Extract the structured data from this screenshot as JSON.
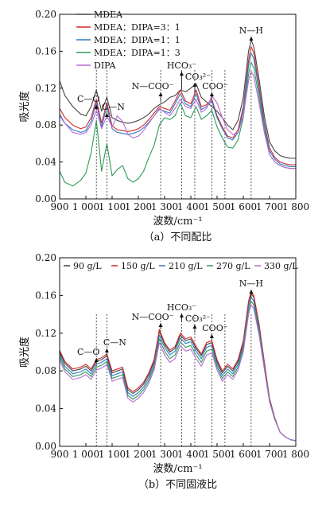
{
  "charts": [
    {
      "id": "a",
      "caption": "（a）不同配比",
      "xlabel": "波数/cm⁻¹",
      "ylabel": "吸光度",
      "xlim": [
        900,
        1800
      ],
      "ylim": [
        0,
        0.2
      ],
      "xticks": [
        900,
        1000,
        1100,
        1200,
        1300,
        1400,
        1500,
        1600,
        1700,
        1800
      ],
      "xtick_labels": [
        "900",
        "1 000",
        "1 100",
        "1 200",
        "1 300",
        "1 400",
        "1 500",
        "1 600",
        "1 700",
        "1 800"
      ],
      "yticks": [
        0,
        0.04,
        0.08,
        0.12,
        0.16,
        0.2
      ],
      "ytick_labels": [
        "0.00",
        "0.04",
        "0.08",
        "0.12",
        "0.16",
        "0.20"
      ],
      "legend": {
        "placement": "top-left"
      },
      "annotations": [
        {
          "label": "C—O",
          "x": 1040
        },
        {
          "label": "C—N",
          "x": 1080
        },
        {
          "label": "N—COO⁻",
          "x": 1285
        },
        {
          "label": "HCO₃⁻",
          "x": 1365
        },
        {
          "label": "CO₃²⁻",
          "x": 1415
        },
        {
          "label": "COO⁻",
          "x": 1480
        },
        {
          "label": "N—H",
          "x": 1630
        }
      ],
      "dashed_markers": [
        1040,
        1080,
        1285,
        1365,
        1415,
        1480,
        1530,
        1630
      ],
      "chart_data": {
        "type": "line",
        "x": [
          900,
          920,
          950,
          980,
          1000,
          1020,
          1040,
          1060,
          1080,
          1100,
          1120,
          1140,
          1160,
          1180,
          1200,
          1220,
          1240,
          1260,
          1280,
          1300,
          1320,
          1340,
          1360,
          1380,
          1400,
          1420,
          1440,
          1460,
          1480,
          1500,
          1520,
          1540,
          1560,
          1580,
          1600,
          1620,
          1630,
          1640,
          1660,
          1680,
          1700,
          1720,
          1740,
          1760,
          1780,
          1800
        ],
        "series": [
          {
            "name": "MDEA",
            "color": "#444444",
            "values": [
              0.128,
              0.112,
              0.1,
              0.092,
              0.09,
              0.1,
              0.118,
              0.095,
              0.11,
              0.088,
              0.085,
              0.083,
              0.082,
              0.083,
              0.085,
              0.088,
              0.092,
              0.098,
              0.102,
              0.105,
              0.11,
              0.112,
              0.118,
              0.116,
              0.12,
              0.125,
              0.11,
              0.105,
              0.1,
              0.095,
              0.088,
              0.08,
              0.075,
              0.085,
              0.11,
              0.16,
              0.172,
              0.165,
              0.13,
              0.09,
              0.062,
              0.052,
              0.047,
              0.045,
              0.044,
              0.044
            ]
          },
          {
            "name": "MDEA：DIPA=3：1",
            "color": "#d42a2a",
            "values": [
              0.098,
              0.088,
              0.08,
              0.076,
              0.078,
              0.088,
              0.108,
              0.082,
              0.104,
              0.079,
              0.075,
              0.074,
              0.073,
              0.074,
              0.076,
              0.08,
              0.086,
              0.093,
              0.1,
              0.098,
              0.096,
              0.106,
              0.118,
              0.106,
              0.103,
              0.118,
              0.1,
              0.102,
              0.108,
              0.09,
              0.078,
              0.068,
              0.066,
              0.075,
              0.1,
              0.15,
              0.165,
              0.158,
              0.122,
              0.083,
              0.055,
              0.045,
              0.04,
              0.038,
              0.037,
              0.037
            ]
          },
          {
            "name": "MDEA：DIPA=1：1",
            "color": "#2e7bc4",
            "values": [
              0.092,
              0.082,
              0.075,
              0.072,
              0.074,
              0.084,
              0.104,
              0.078,
              0.1,
              0.076,
              0.072,
              0.071,
              0.07,
              0.071,
              0.073,
              0.077,
              0.083,
              0.09,
              0.097,
              0.095,
              0.093,
              0.103,
              0.114,
              0.103,
              0.1,
              0.114,
              0.097,
              0.1,
              0.106,
              0.088,
              0.076,
              0.066,
              0.064,
              0.072,
              0.096,
              0.144,
              0.158,
              0.152,
              0.117,
              0.08,
              0.052,
              0.043,
              0.038,
              0.036,
              0.035,
              0.035
            ]
          },
          {
            "name": "MDEA：DIPA=1：3",
            "color": "#2e9b55",
            "values": [
              0.03,
              0.018,
              0.014,
              0.02,
              0.028,
              0.05,
              0.085,
              0.03,
              0.06,
              0.025,
              0.032,
              0.036,
              0.022,
              0.018,
              0.022,
              0.03,
              0.045,
              0.058,
              0.08,
              0.088,
              0.086,
              0.09,
              0.104,
              0.09,
              0.088,
              0.1,
              0.086,
              0.09,
              0.096,
              0.078,
              0.066,
              0.056,
              0.055,
              0.064,
              0.088,
              0.135,
              0.148,
              0.142,
              0.11,
              0.075,
              0.048,
              0.04,
              0.036,
              0.034,
              0.033,
              0.033
            ]
          },
          {
            "name": "DIPA",
            "color": "#b86ad6",
            "values": [
              0.09,
              0.082,
              0.072,
              0.07,
              0.072,
              0.08,
              0.096,
              0.076,
              0.09,
              0.078,
              0.09,
              0.084,
              0.07,
              0.066,
              0.068,
              0.074,
              0.082,
              0.09,
              0.098,
              0.094,
              0.09,
              0.098,
              0.108,
              0.1,
              0.098,
              0.108,
              0.094,
              0.098,
              0.112,
              0.104,
              0.088,
              0.075,
              0.07,
              0.072,
              0.09,
              0.128,
              0.138,
              0.133,
              0.104,
              0.072,
              0.048,
              0.04,
              0.036,
              0.034,
              0.033,
              0.033
            ]
          }
        ]
      }
    },
    {
      "id": "b",
      "caption": "（b）不同固液比",
      "xlabel": "波数/cm⁻¹",
      "ylabel": "吸光度",
      "xlim": [
        900,
        1800
      ],
      "ylim": [
        0,
        0.2
      ],
      "xticks": [
        900,
        1000,
        1100,
        1200,
        1300,
        1400,
        1500,
        1600,
        1700,
        1800
      ],
      "xtick_labels": [
        "900",
        "1 000",
        "1 100",
        "1 200",
        "1 300",
        "1 400",
        "1 500",
        "1 600",
        "1 700",
        "1 800"
      ],
      "yticks": [
        0,
        0.04,
        0.08,
        0.12,
        0.16,
        0.2
      ],
      "ytick_labels": [
        "0.00",
        "0.04",
        "0.08",
        "0.12",
        "0.16",
        "0.20"
      ],
      "legend": {
        "placement": "top"
      },
      "annotations": [
        {
          "label": "C—O",
          "x": 1040
        },
        {
          "label": "C—N",
          "x": 1080
        },
        {
          "label": "N—COO⁻",
          "x": 1285
        },
        {
          "label": "HCO₃⁻",
          "x": 1365
        },
        {
          "label": "CO₃²⁻",
          "x": 1415
        },
        {
          "label": "COO⁻",
          "x": 1480
        },
        {
          "label": "N—H",
          "x": 1630
        }
      ],
      "dashed_markers": [
        1040,
        1080,
        1285,
        1365,
        1415,
        1480,
        1530,
        1630
      ],
      "chart_data": {
        "type": "line",
        "x": [
          900,
          920,
          950,
          980,
          1000,
          1020,
          1040,
          1060,
          1080,
          1100,
          1120,
          1140,
          1160,
          1180,
          1200,
          1220,
          1240,
          1260,
          1280,
          1300,
          1320,
          1340,
          1360,
          1380,
          1400,
          1420,
          1440,
          1460,
          1480,
          1500,
          1520,
          1540,
          1560,
          1580,
          1600,
          1620,
          1630,
          1640,
          1660,
          1680,
          1700,
          1720,
          1740,
          1760,
          1780,
          1800
        ],
        "series": [
          {
            "name": "90 g/L",
            "color": "#444444",
            "values": [
              0.1,
              0.088,
              0.08,
              0.082,
              0.085,
              0.08,
              0.09,
              0.092,
              0.096,
              0.078,
              0.08,
              0.082,
              0.06,
              0.056,
              0.06,
              0.066,
              0.076,
              0.09,
              0.122,
              0.108,
              0.1,
              0.104,
              0.118,
              0.112,
              0.114,
              0.104,
              0.096,
              0.108,
              0.11,
              0.09,
              0.078,
              0.085,
              0.08,
              0.09,
              0.11,
              0.152,
              0.162,
              0.158,
              0.128,
              0.088,
              0.05,
              0.03,
              0.015,
              0.01,
              0.007,
              0.006
            ]
          },
          {
            "name": "150 g/L",
            "color": "#d42a2a",
            "values": [
              0.102,
              0.09,
              0.082,
              0.084,
              0.087,
              0.082,
              0.092,
              0.094,
              0.098,
              0.08,
              0.082,
              0.084,
              0.062,
              0.058,
              0.062,
              0.068,
              0.078,
              0.092,
              0.124,
              0.11,
              0.102,
              0.106,
              0.12,
              0.114,
              0.116,
              0.106,
              0.098,
              0.11,
              0.112,
              0.092,
              0.08,
              0.087,
              0.082,
              0.092,
              0.112,
              0.154,
              0.164,
              0.16,
              0.13,
              0.09,
              0.051,
              0.03,
              0.015,
              0.01,
              0.007,
              0.006
            ]
          },
          {
            "name": "210 g/L",
            "color": "#2e7bc4",
            "values": [
              0.098,
              0.085,
              0.077,
              0.079,
              0.082,
              0.077,
              0.087,
              0.089,
              0.093,
              0.075,
              0.077,
              0.079,
              0.057,
              0.053,
              0.057,
              0.063,
              0.073,
              0.087,
              0.118,
              0.105,
              0.097,
              0.101,
              0.115,
              0.109,
              0.111,
              0.101,
              0.093,
              0.105,
              0.107,
              0.087,
              0.075,
              0.082,
              0.077,
              0.087,
              0.107,
              0.148,
              0.158,
              0.154,
              0.125,
              0.086,
              0.049,
              0.029,
              0.015,
              0.01,
              0.007,
              0.006
            ]
          },
          {
            "name": "270 g/L",
            "color": "#2e9b55",
            "values": [
              0.095,
              0.082,
              0.074,
              0.076,
              0.079,
              0.074,
              0.084,
              0.086,
              0.09,
              0.072,
              0.074,
              0.076,
              0.054,
              0.05,
              0.054,
              0.06,
              0.07,
              0.084,
              0.114,
              0.101,
              0.093,
              0.097,
              0.111,
              0.105,
              0.107,
              0.097,
              0.089,
              0.101,
              0.103,
              0.084,
              0.072,
              0.079,
              0.074,
              0.084,
              0.104,
              0.144,
              0.154,
              0.15,
              0.121,
              0.084,
              0.048,
              0.029,
              0.015,
              0.01,
              0.007,
              0.006
            ]
          },
          {
            "name": "330 g/L",
            "color": "#b86ad6",
            "values": [
              0.092,
              0.079,
              0.071,
              0.073,
              0.076,
              0.071,
              0.081,
              0.083,
              0.087,
              0.069,
              0.071,
              0.073,
              0.051,
              0.047,
              0.051,
              0.057,
              0.067,
              0.081,
              0.11,
              0.097,
              0.089,
              0.093,
              0.107,
              0.101,
              0.103,
              0.093,
              0.085,
              0.097,
              0.099,
              0.081,
              0.069,
              0.076,
              0.071,
              0.081,
              0.1,
              0.14,
              0.15,
              0.146,
              0.118,
              0.082,
              0.047,
              0.028,
              0.015,
              0.01,
              0.007,
              0.006
            ]
          }
        ]
      }
    }
  ]
}
